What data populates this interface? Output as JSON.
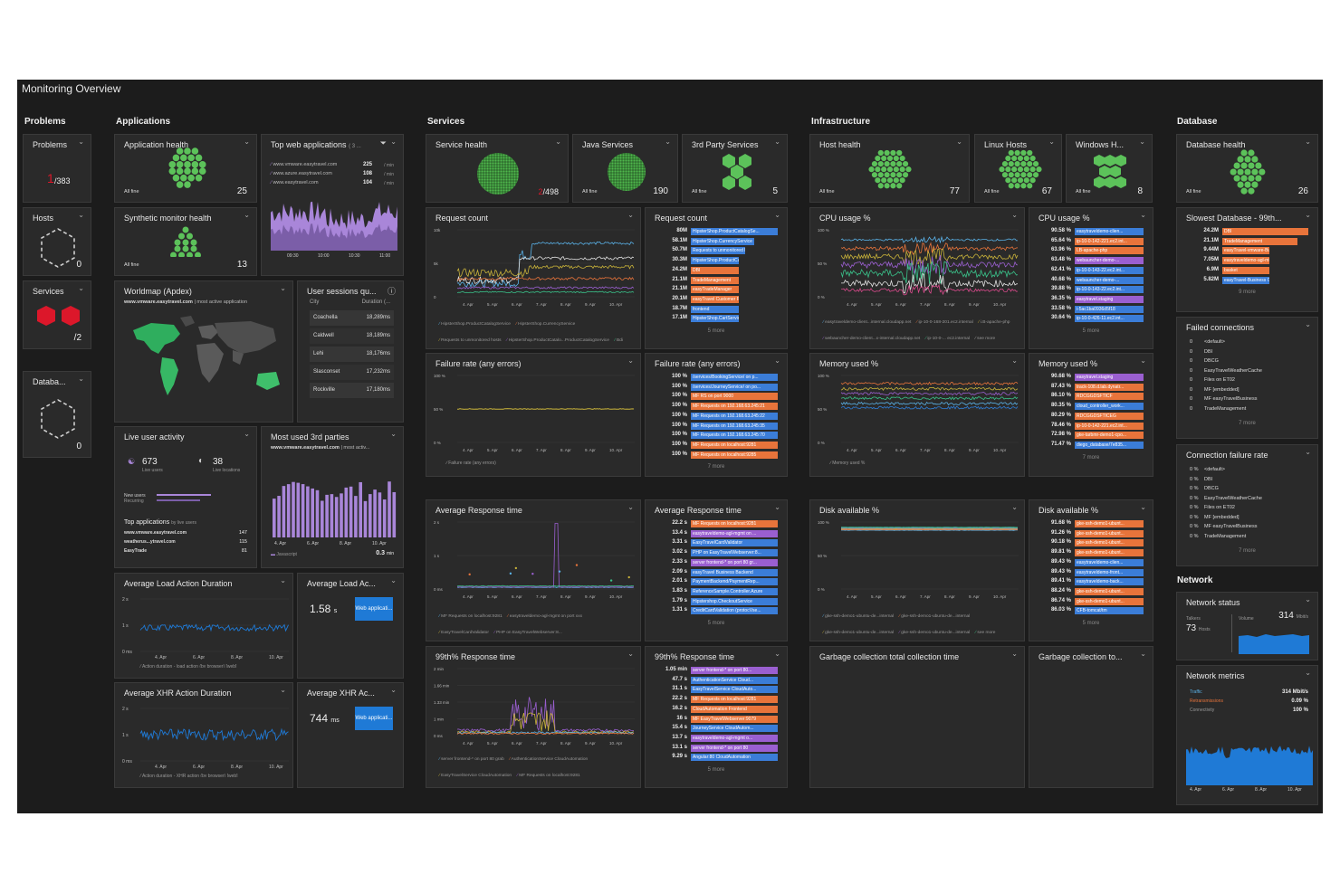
{
  "dashboard": {
    "title": "Monitoring Overview"
  },
  "sections": {
    "problems": "Problems",
    "applications": "Applications",
    "services": "Services",
    "infrastructure": "Infrastructure",
    "database": "Database",
    "network": "Network"
  },
  "problems": {
    "title": "Problems",
    "value": "1",
    "total": "/383"
  },
  "hosts_left": {
    "title": "Hosts",
    "count": "0"
  },
  "services_left": {
    "title": "Services",
    "count": "2",
    "count_sep": "/"
  },
  "database_left": {
    "title": "Databa...",
    "count": "0"
  },
  "app_health": {
    "title": "Application health",
    "filter": "All fine",
    "count": "25"
  },
  "top_web": {
    "title": "Top web applications",
    "suffix": "( 3 ...",
    "rows": [
      {
        "name": "www.vmware.easytravel.com",
        "value": "225",
        "unit": "/ min"
      },
      {
        "name": "www.azure.easytravel.com",
        "value": "108",
        "unit": "/ min"
      },
      {
        "name": "www.easytravel.com",
        "value": "104",
        "unit": "/ min"
      }
    ],
    "ticks": [
      "09:30",
      "10:00",
      "10:30",
      "11:00"
    ]
  },
  "synthetic": {
    "title": "Synthetic monitor health",
    "filter": "All fine",
    "count": "13"
  },
  "worldmap": {
    "title": "Worldmap (Apdex)",
    "subtitle_bold": "www.vmware.easytravel.com",
    "subtitle_rest": " | most active application"
  },
  "user_sessions": {
    "title": "User sessions qu...",
    "col1": "City",
    "col2": "Duration (...",
    "rows": [
      {
        "city": "Coachella",
        "duration": "18,289ms"
      },
      {
        "city": "Caldwell",
        "duration": "18,189ms"
      },
      {
        "city": "Lehi",
        "duration": "18,176ms"
      },
      {
        "city": "Slasconset",
        "duration": "17,232ms"
      },
      {
        "city": "Rockville",
        "duration": "17,180ms"
      }
    ]
  },
  "live_user": {
    "title": "Live user activity",
    "users": "673",
    "users_label": "Live users",
    "locations": "38",
    "locations_label": "Live locations",
    "new_users": "New users",
    "recurring": "Recurring",
    "top_apps": "Top applications",
    "top_apps_sub": "by live users",
    "apps": [
      {
        "name": "www.vmware.easytravel.com",
        "value": "147"
      },
      {
        "name": "weatherus...ytravel.com",
        "value": "115"
      },
      {
        "name": "EasyTrade",
        "value": "81"
      }
    ]
  },
  "third_parties": {
    "title": "Most used 3rd parties",
    "subtitle_bold": "www.vmware.easytravel.com",
    "subtitle_rest": " | most activ...",
    "ticks": [
      "4. Apr",
      "6. Apr",
      "8. Apr",
      "10. Apr"
    ],
    "legend": "Javascript",
    "value": "0.3",
    "unit": "min"
  },
  "avg_load": {
    "title": "Average Load Action Duration",
    "yticks": [
      "2 s",
      "1 s",
      "0 ms"
    ],
    "xticks": [
      "4. Apr",
      "6. Apr",
      "8. Apr",
      "10. Apr"
    ],
    "legend": "Action duration - load action (by browser) [web]"
  },
  "avg_load_small": {
    "title": "Average Load Ac...",
    "value": "1.58",
    "unit": "s",
    "button": "Web applicati..."
  },
  "avg_xhr": {
    "title": "Average XHR Action Duration",
    "yticks": [
      "2 s",
      "1 s",
      "0 ms"
    ],
    "xticks": [
      "4. Apr",
      "6. Apr",
      "8. Apr",
      "10. Apr"
    ],
    "legend": "Action duration - XHR action (by browser) [web]"
  },
  "avg_xhr_small": {
    "title": "Average XHR Ac...",
    "value": "744",
    "unit": "ms",
    "button": "Web applicati..."
  },
  "service_health": {
    "title": "Service health",
    "value": "2",
    "total": "/498"
  },
  "java_services": {
    "title": "Java Services",
    "filter": "All fine",
    "count": "190"
  },
  "third_party_services": {
    "title": "3rd Party Services",
    "filter": "All fine",
    "count": "5"
  },
  "request_count_chart": {
    "title": "Request count",
    "yticks": [
      "10k",
      "5k",
      "0"
    ],
    "xticks": [
      "4. Apr",
      "5. Apr",
      "6. Apr",
      "7. Apr",
      "8. Apr",
      "9. Apr",
      "10. Apr"
    ],
    "legend": [
      "HipsterShop.ProductCatalogService",
      "HipsterShop.CurrencyService",
      "Requests to unmonitored hosts",
      "HipsterShop.ProductCatalo...ProductCatalogService",
      "Bdi",
      "see more"
    ]
  },
  "request_count_list": {
    "title": "Request count",
    "more": "5 more",
    "rows": [
      {
        "v": "80M",
        "label": "HipsterShop.ProductCatalogSe...",
        "color": "#3b7dd8",
        "w": 100
      },
      {
        "v": "58.1M",
        "label": "HipsterShop.CurrencyService",
        "color": "#3b7dd8",
        "w": 73
      },
      {
        "v": "50.7M",
        "label": "Requests to unmonitored hosts",
        "color": "#3b7dd8",
        "w": 63
      },
      {
        "v": "30.3M",
        "label": "HipsterShop.ProductCatalogSe...",
        "color": "#3b7dd8",
        "w": 38
      },
      {
        "v": "24.2M",
        "label": "DBI",
        "color": "#e8743b",
        "w": 30
      },
      {
        "v": "21.1M",
        "label": "TradeManagement",
        "color": "#e8743b",
        "w": 26
      },
      {
        "v": "21.1M",
        "label": "easyTradeManager",
        "color": "#e8743b",
        "w": 26
      },
      {
        "v": "20.1M",
        "label": "easyTravel Customer Frontend",
        "color": "#e8743b",
        "w": 25
      },
      {
        "v": "18.7M",
        "label": "frontend",
        "color": "#3b7dd8",
        "w": 23
      },
      {
        "v": "17.1M",
        "label": "HipsterShop.CartService (grpc...",
        "color": "#3b7dd8",
        "w": 21
      }
    ]
  },
  "failure_rate_chart": {
    "title": "Failure rate (any errors)",
    "yticks": [
      "100 %",
      "50 %",
      "0 %"
    ],
    "xticks": [
      "4. Apr",
      "5. Apr",
      "6. Apr",
      "7. Apr",
      "8. Apr",
      "9. Apr",
      "10. Apr"
    ],
    "legend": "Failure rate (any errors)"
  },
  "failure_rate_list": {
    "title": "Failure rate (any errors)",
    "more": "7 more",
    "rows": [
      {
        "v": "100 %",
        "label": "/services/BookingService/ on p...",
        "color": "#3b7dd8"
      },
      {
        "v": "100 %",
        "label": "/services/JourneyService/ on po...",
        "color": "#3b7dd8"
      },
      {
        "v": "100 %",
        "label": "MF RS on port 9000",
        "color": "#e8743b"
      },
      {
        "v": "100 %",
        "label": "MF Requests on 192.168.63.245:21",
        "color": "#e8743b"
      },
      {
        "v": "100 %",
        "label": "MF Requests on 192.168.63.245:22",
        "color": "#3b7dd8"
      },
      {
        "v": "100 %",
        "label": "MF Requests on 192.168.63.245:35",
        "color": "#3b7dd8"
      },
      {
        "v": "100 %",
        "label": "MF Requests on 192.168.63.245:70",
        "color": "#3b7dd8"
      },
      {
        "v": "100 %",
        "label": "MF Requests on localhost:9281",
        "color": "#e8743b"
      },
      {
        "v": "100 %",
        "label": "MF Requests on localhost:9285",
        "color": "#e8743b"
      }
    ]
  },
  "avg_response_chart": {
    "title": "Average Response time",
    "yticks": [
      "2 s",
      "1 s",
      "0 ms"
    ],
    "xticks": [
      "4. Apr",
      "5. Apr",
      "6. Apr",
      "7. Apr",
      "8. Apr",
      "9. Apr",
      "10. Apr"
    ],
    "legend": [
      "MF Requests on localhost:9281",
      "easytraveldemo-agl-mgmt on port xxx",
      "EasyTravelCardValidator",
      "PHP on EasyTravelWebserver:8...",
      "server frontend-* on port 80 gr...",
      "see more"
    ]
  },
  "avg_response_list": {
    "title": "Average Response time",
    "more": "5 more",
    "rows": [
      {
        "v": "22.2 s",
        "label": "MF Requests on localhost:9281",
        "color": "#e8743b"
      },
      {
        "v": "13.4 s",
        "label": "easytraveldemo-agl-mgmt on ...",
        "color": "#9a5fd0"
      },
      {
        "v": "3.31 s",
        "label": "EasyTravelCardValidator",
        "color": "#3b7dd8"
      },
      {
        "v": "3.02 s",
        "label": "PHP on EasyTravelWebserver:8...",
        "color": "#3b7dd8"
      },
      {
        "v": "2.33 s",
        "label": "server frontend-* on port 80 gr...",
        "color": "#9a5fd0"
      },
      {
        "v": "2.09 s",
        "label": "easyTravel Business Backend",
        "color": "#3b7dd8"
      },
      {
        "v": "2.01 s",
        "label": "PaymentBackend/PaymentRep...",
        "color": "#3b7dd8"
      },
      {
        "v": "1.83 s",
        "label": "ReferenceSample.Controller.Azure",
        "color": "#3b7dd8"
      },
      {
        "v": "1.79 s",
        "label": "Hipstershop.CheckoutService",
        "color": "#3b7dd8"
      },
      {
        "v": "1.31 s",
        "label": "CreditCardValidation (protocVse...",
        "color": "#3b7dd8"
      }
    ]
  },
  "p99_chart": {
    "title": "99th% Response time",
    "yticks": [
      "2 min",
      "1.66 min",
      "1.33 min",
      "1 min",
      "0 ms"
    ],
    "xticks": [
      "4. Apr",
      "5. Apr",
      "6. Apr",
      "7. Apr",
      "8. Apr",
      "9. Apr",
      "10. Apr"
    ],
    "legend": [
      "server frontend-* on port 80 grab",
      "AuthenticationService CloudAutomation",
      "EasyTravelService CloudAutomation",
      "MF Requests on localhost:9281",
      "CloudAutomation Frontend",
      "see more"
    ]
  },
  "p99_list": {
    "title": "99th% Response time",
    "more": "5 more",
    "rows": [
      {
        "v": "1.05 min",
        "label": "server frontend-* on port 80...",
        "color": "#9a5fd0"
      },
      {
        "v": "47.7 s",
        "label": "AuthenticationService Cloud...",
        "color": "#3b7dd8"
      },
      {
        "v": "31.1 s",
        "label": "EasyTravelService CloudAuto...",
        "color": "#3b7dd8"
      },
      {
        "v": "22.2 s",
        "label": "MF Requests on localhost:9281",
        "color": "#e8743b"
      },
      {
        "v": "16.2 s",
        "label": "CloudAutomation Frontend",
        "color": "#e8743b"
      },
      {
        "v": "16 s",
        "label": "MF EasyTravelWebserver:9079",
        "color": "#e8743b"
      },
      {
        "v": "15.4 s",
        "label": "JourneyService CloudAutom...",
        "color": "#3b7dd8"
      },
      {
        "v": "13.7 s",
        "label": "easytraveldemo-agl-mgmt o...",
        "color": "#9a5fd0"
      },
      {
        "v": "13.1 s",
        "label": "server frontend-* on port 80",
        "color": "#9a5fd0"
      },
      {
        "v": "9.29 s",
        "label": "Angular:80 CloudAutomation",
        "color": "#3b7dd8"
      }
    ]
  },
  "host_health": {
    "title": "Host health",
    "filter": "All fine",
    "count": "77"
  },
  "linux_hosts": {
    "title": "Linux Hosts",
    "filter": "All fine",
    "count": "67"
  },
  "windows_hosts": {
    "title": "Windows H...",
    "filter": "All fine",
    "count": "8"
  },
  "cpu_chart": {
    "title": "CPU usage %",
    "yticks": [
      "100 %",
      "50 %",
      "0 %"
    ],
    "xticks": [
      "4. Apr",
      "5. Apr",
      "6. Apr",
      "7. Apr",
      "8. Apr",
      "9. Apr",
      "10. Apr"
    ],
    "legend": [
      "easytraveldemo-client...internal.cloudapp.net",
      "ip-10-0-168-201.ec2.internal",
      "i.B-apache-php",
      "webauncher-demo-client...x-internal.cloudapp.net",
      "ip-10-0-... ec2.internal",
      "see more"
    ]
  },
  "cpu_list": {
    "title": "CPU usage %",
    "more": "5 more",
    "rows": [
      {
        "v": "90.58 %",
        "label": "easytraveldemo-clien...",
        "color": "#3b7dd8"
      },
      {
        "v": "65.64 %",
        "label": "ip-10-0-142-221.ec2.int...",
        "color": "#e8743b"
      },
      {
        "v": "63.96 %",
        "label": "LB-apache-php",
        "color": "#e8743b"
      },
      {
        "v": "63.48 %",
        "label": "webauncher-demo-...",
        "color": "#9a5fd0"
      },
      {
        "v": "62.41 %",
        "label": "ip-10-0-143-22.ec2.int...",
        "color": "#3b7dd8"
      },
      {
        "v": "40.68 %",
        "label": "webauncher-demo-...",
        "color": "#3b7dd8"
      },
      {
        "v": "39.88 %",
        "label": "ip-10-0-143-22.ec2.int...",
        "color": "#3b7dd8"
      },
      {
        "v": "36.35 %",
        "label": "easytravel.staging",
        "color": "#9a5fd0"
      },
      {
        "v": "33.58 %",
        "label": "i-5ac1ba0936d5f18",
        "color": "#3b7dd8"
      },
      {
        "v": "30.64 %",
        "label": "ip-10-0-426-11.ec2.int...",
        "color": "#3b7dd8"
      }
    ]
  },
  "mem_chart": {
    "title": "Memory used %",
    "yticks": [
      "100 %",
      "50 %",
      "0 %"
    ],
    "xticks": [
      "4. Apr",
      "5. Apr",
      "6. Apr",
      "7. Apr",
      "8. Apr",
      "9. Apr",
      "10. Apr"
    ],
    "legend": "Memory used %"
  },
  "mem_list": {
    "title": "Memory used %",
    "more": "7 more",
    "rows": [
      {
        "v": "90.68 %",
        "label": "easytravel.staging",
        "color": "#9a5fd0"
      },
      {
        "v": "87.43 %",
        "label": "track-108.d.lab.dynatr...",
        "color": "#e8743b"
      },
      {
        "v": "86.10 %",
        "label": "RDCGGDSFTICF",
        "color": "#e8743b"
      },
      {
        "v": "80.35 %",
        "label": "cloud_controller_work...",
        "color": "#3b7dd8"
      },
      {
        "v": "80.29 %",
        "label": "RDCGGDSFTICEG",
        "color": "#e8743b"
      },
      {
        "v": "78.46 %",
        "label": "ip-10-0-142-221.ec2.int...",
        "color": "#e8743b"
      },
      {
        "v": "72.98 %",
        "label": "gke-tarbmr-demo1-cpo...",
        "color": "#e8743b"
      },
      {
        "v": "71.47 %",
        "label": "diego_database/7e835...",
        "color": "#3b7dd8"
      }
    ]
  },
  "disk_chart": {
    "title": "Disk available %",
    "yticks": [
      "100 %",
      "50 %",
      "0 %"
    ],
    "xticks": [
      "4. Apr",
      "5. Apr",
      "6. Apr",
      "7. Apr",
      "8. Apr",
      "9. Apr",
      "10. Apr"
    ],
    "legend": [
      "gke-ssh-demo1-ubuntu-de...internal",
      "gke-ssh-demo1-ubuntu-de...internal",
      "gke-ssh-demo1-ubuntu-de...internal",
      "gke-ssh-demo1-ubuntu-de...internal",
      "see more"
    ]
  },
  "disk_list": {
    "title": "Disk available %",
    "more": "5 more",
    "rows": [
      {
        "v": "91.68 %",
        "label": "gke-ssh-demo1-ubunt...",
        "color": "#e8743b"
      },
      {
        "v": "91.26 %",
        "label": "gke-ssh-demo1-ubunt...",
        "color": "#e8743b"
      },
      {
        "v": "90.18 %",
        "label": "gke-ssh-demo1-ubunt...",
        "color": "#e8743b"
      },
      {
        "v": "89.81 %",
        "label": "gke-ssh-demo1-ubunt...",
        "color": "#e8743b"
      },
      {
        "v": "89.43 %",
        "label": "easytraveldemo-clien...",
        "color": "#3b7dd8"
      },
      {
        "v": "89.43 %",
        "label": "easytraveldemo-front...",
        "color": "#3b7dd8"
      },
      {
        "v": "89.41 %",
        "label": "easytraveldemo-back...",
        "color": "#3b7dd8"
      },
      {
        "v": "88.24 %",
        "label": "gke-ssh-demo1-ubunt...",
        "color": "#e8743b"
      },
      {
        "v": "86.74 %",
        "label": "gke-ssh-demo1-ubunt...",
        "color": "#e8743b"
      },
      {
        "v": "86.03 %",
        "label": "CFB-tomcat/tm",
        "color": "#3b7dd8"
      }
    ]
  },
  "gc_chart": {
    "title": "Garbage collection total collection time"
  },
  "gc_small": {
    "title": "Garbage collection to..."
  },
  "db_health": {
    "title": "Database health",
    "filter": "All fine",
    "count": "26"
  },
  "slowest_db": {
    "title": "Slowest Database - 99th...",
    "more": "9 more",
    "rows": [
      {
        "v": "24.2M",
        "label": "DBI",
        "color": "#e8743b",
        "w": 100
      },
      {
        "v": "21.1M",
        "label": "TradeManagement",
        "color": "#e8743b",
        "w": 87
      },
      {
        "v": "9.44M",
        "label": "easyTravel-vmware-Business",
        "color": "#e8743b",
        "w": 39
      },
      {
        "v": "7.05M",
        "label": "easytraveldemo-agl-mb",
        "color": "#e8743b",
        "w": 29
      },
      {
        "v": "6.9M",
        "label": "basket",
        "color": "#e8743b",
        "w": 28
      },
      {
        "v": "5.82M",
        "label": "easyTravel-Business CloudAuto...",
        "color": "#3b7dd8",
        "w": 24
      }
    ]
  },
  "failed_conn": {
    "title": "Failed connections",
    "more": "7 more",
    "rows": [
      {
        "v": "0",
        "label": "<default>"
      },
      {
        "v": "0",
        "label": "DBI"
      },
      {
        "v": "0",
        "label": "DBCG"
      },
      {
        "v": "0",
        "label": "EasyTravelWeatherCache"
      },
      {
        "v": "0",
        "label": "Files on ET02"
      },
      {
        "v": "0",
        "label": "MF [embedded]"
      },
      {
        "v": "0",
        "label": "MF easyTravelBusiness"
      },
      {
        "v": "0",
        "label": "TradeManagement"
      }
    ]
  },
  "conn_fail_rate": {
    "title": "Connection failure rate",
    "more": "7 more",
    "rows": [
      {
        "v": "0 %",
        "label": "<default>"
      },
      {
        "v": "0 %",
        "label": "DBI"
      },
      {
        "v": "0 %",
        "label": "DBCG"
      },
      {
        "v": "0 %",
        "label": "EasyTravelWeatherCache"
      },
      {
        "v": "0 %",
        "label": "Files on ET02"
      },
      {
        "v": "0 %",
        "label": "MF [embedded]"
      },
      {
        "v": "0 %",
        "label": "MF easyTravelBusiness"
      },
      {
        "v": "0 %",
        "label": "TradeManagement"
      }
    ]
  },
  "network_status": {
    "title": "Network status",
    "talkers_label": "Talkers",
    "talkers": "73",
    "talkers_unit": "Hosts",
    "volume_label": "Volume",
    "volume": "314",
    "volume_unit": "Mbit/s"
  },
  "network_metrics": {
    "title": "Network metrics",
    "rows": [
      {
        "label": "Traffic",
        "value": "314 Mbit/s"
      },
      {
        "label": "Retransmissions",
        "value": "0.09 %"
      },
      {
        "label": "Connectivity",
        "value": "100 %"
      }
    ],
    "xticks": [
      "4. Apr",
      "6. Apr",
      "8. Apr",
      "10. Apr"
    ]
  },
  "colors": {
    "green": "#5cc25a",
    "red": "#dc172a",
    "blue": "#1f7ad6",
    "purple": "#a986d9",
    "orange": "#e8743b"
  }
}
